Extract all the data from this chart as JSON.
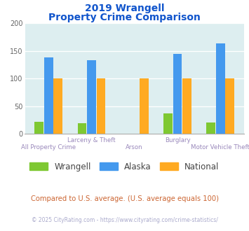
{
  "title_line1": "2019 Wrangell",
  "title_line2": "Property Crime Comparison",
  "categories": [
    "All Property Crime",
    "Larceny & Theft",
    "Arson",
    "Burglary",
    "Motor Vehicle Theft"
  ],
  "series": {
    "Wrangell": [
      22,
      19,
      0,
      37,
      21
    ],
    "Alaska": [
      138,
      133,
      0,
      145,
      163
    ],
    "National": [
      100,
      100,
      100,
      100,
      100
    ]
  },
  "colors": {
    "Wrangell": "#7ec832",
    "Alaska": "#4499ee",
    "National": "#ffaa22"
  },
  "ylim": [
    0,
    200
  ],
  "yticks": [
    0,
    50,
    100,
    150,
    200
  ],
  "plot_bg": "#ddeef0",
  "title_color": "#1155cc",
  "xlabel_color": "#9988bb",
  "footer_note": "Compared to U.S. average. (U.S. average equals 100)",
  "footer_copy": "© 2025 CityRating.com - https://www.cityrating.com/crime-statistics/",
  "footer_note_color": "#cc6633",
  "footer_copy_color": "#aaaacc",
  "bar_width": 0.22,
  "cat_labels_top": [
    "",
    "Larceny & Theft",
    "",
    "Burglary",
    ""
  ],
  "cat_labels_bot": [
    "All Property Crime",
    "",
    "Arson",
    "",
    "Motor Vehicle Theft"
  ]
}
